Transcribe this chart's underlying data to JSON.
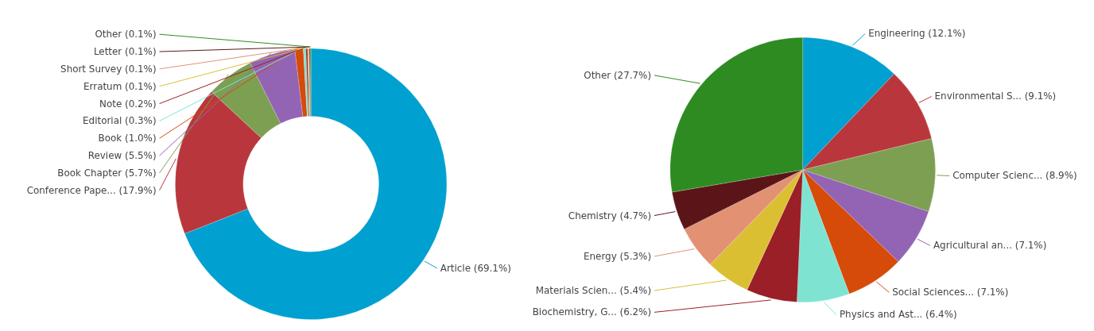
{
  "chart_data": [
    {
      "type": "donut",
      "legend": false,
      "categories": [
        "Article (69.1%)",
        "Conference Pape... (17.9%)",
        "Book Chapter (5.7%)",
        "Review (5.5%)",
        "Book (1.0%)",
        "Editorial (0.3%)",
        "Note (0.2%)",
        "Erratum (0.1%)",
        "Short Survey (0.1%)",
        "Letter (0.1%)",
        "Other (0.1%)"
      ],
      "values": [
        69.1,
        17.9,
        5.7,
        5.5,
        1.0,
        0.3,
        0.2,
        0.1,
        0.1,
        0.1,
        0.1
      ],
      "colors": [
        "#00a0d0",
        "#b9373c",
        "#7d9f52",
        "#9464b4",
        "#d64a0a",
        "#7fe3d2",
        "#9a1f27",
        "#dbbf32",
        "#e29272",
        "#5b1519",
        "#2e8b22"
      ]
    },
    {
      "type": "pie",
      "legend": false,
      "categories": [
        "Engineering (12.1%)",
        "Environmental S... (9.1%)",
        "Computer Scienc... (8.9%)",
        "Agricultural an... (7.1%)",
        "Social Sciences... (7.1%)",
        "Physics and Ast... (6.4%)",
        "Biochemistry, G... (6.2%)",
        "Materials Scien... (5.4%)",
        "Energy (5.3%)",
        "Chemistry (4.7%)",
        "Other (27.7%)"
      ],
      "values": [
        12.1,
        9.1,
        8.9,
        7.1,
        7.1,
        6.4,
        6.2,
        5.4,
        5.3,
        4.7,
        27.7
      ],
      "colors": [
        "#00a0d0",
        "#b9373c",
        "#7d9f52",
        "#9464b4",
        "#d64a0a",
        "#7fe3d2",
        "#9a1f27",
        "#dbbf32",
        "#e29272",
        "#5b1519",
        "#2e8b22"
      ]
    }
  ]
}
